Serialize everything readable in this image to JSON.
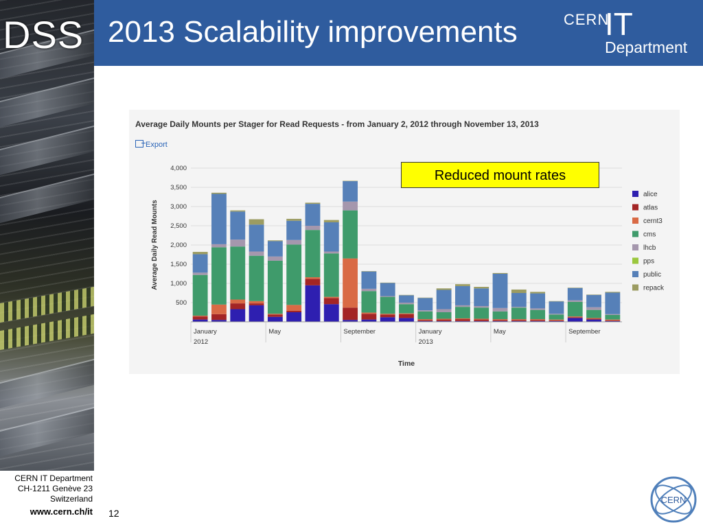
{
  "slide": {
    "side_label": "DSS",
    "title": "2013 Scalability improvements",
    "logo": {
      "cern": "CERN",
      "it": "IT",
      "department": "Department"
    },
    "footer": {
      "line1": "CERN IT Department",
      "line2": "CH-1211 Genève 23",
      "line3": "Switzerland",
      "url": "www.cern.ch/it",
      "page_number": "12"
    },
    "seal_text": "CERN"
  },
  "chart_panel": {
    "title": "Average Daily Mounts per Stager for Read Requests - from January 2, 2012 through November 13, 2013",
    "export_label": "Export"
  },
  "callout": {
    "text": "Reduced mount rates"
  },
  "colors": {
    "header": "#2f5c9e",
    "alice": "#2e1fb0",
    "atlas": "#a32525",
    "cernt3": "#d96a45",
    "cms": "#3f9b6b",
    "lhcb": "#a597ad",
    "pps": "#9bc73e",
    "public": "#5680b8",
    "repack": "#9c9c62",
    "callout_bg": "#ffff00"
  },
  "chart_data": {
    "type": "bar",
    "stacked": true,
    "xlabel": "Time",
    "ylabel": "Average Daily  Read Mounts",
    "ylim": [
      0,
      4000
    ],
    "yticks": [
      "500",
      "1,000",
      "1,500",
      "2,000",
      "2,500",
      "3,000",
      "3,500",
      "4,000"
    ],
    "ytick_values": [
      500,
      1000,
      1500,
      2000,
      2500,
      3000,
      3500,
      4000
    ],
    "x_labels": [
      {
        "line1": "January",
        "line2": "2012",
        "index": 0
      },
      {
        "line1": "May",
        "line2": "",
        "index": 4
      },
      {
        "line1": "September",
        "line2": "",
        "index": 8
      },
      {
        "line1": "January",
        "line2": "2013",
        "index": 12
      },
      {
        "line1": "May",
        "line2": "",
        "index": 16
      },
      {
        "line1": "September",
        "line2": "",
        "index": 20
      }
    ],
    "categories": [
      "2012-01",
      "2012-02",
      "2012-03",
      "2012-04",
      "2012-05",
      "2012-06",
      "2012-07",
      "2012-08",
      "2012-09",
      "2012-10",
      "2012-11",
      "2012-12",
      "2013-01",
      "2013-02",
      "2013-03",
      "2013-04",
      "2013-05",
      "2013-06",
      "2013-07",
      "2013-08",
      "2013-09",
      "2013-10",
      "2013-11"
    ],
    "series": [
      {
        "name": "alice",
        "values": [
          60,
          50,
          330,
          430,
          130,
          250,
          950,
          460,
          50,
          60,
          120,
          100,
          20,
          20,
          20,
          20,
          20,
          20,
          20,
          20,
          100,
          60,
          20
        ]
      },
      {
        "name": "atlas",
        "values": [
          80,
          150,
          150,
          50,
          60,
          40,
          170,
          160,
          320,
          150,
          70,
          100,
          30,
          40,
          50,
          40,
          30,
          30,
          30,
          20,
          20,
          20,
          20
        ]
      },
      {
        "name": "cernt3",
        "values": [
          20,
          250,
          100,
          60,
          20,
          150,
          40,
          30,
          1280,
          30,
          20,
          20,
          20,
          20,
          20,
          20,
          20,
          20,
          20,
          20,
          20,
          20,
          20
        ]
      },
      {
        "name": "cms",
        "values": [
          1060,
          1490,
          1380,
          1180,
          1380,
          1570,
          1230,
          1130,
          1250,
          560,
          440,
          240,
          200,
          170,
          300,
          290,
          200,
          300,
          240,
          130,
          380,
          210,
          120
        ]
      },
      {
        "name": "lhcb",
        "values": [
          60,
          80,
          180,
          110,
          110,
          120,
          110,
          50,
          230,
          60,
          20,
          40,
          30,
          80,
          40,
          40,
          90,
          20,
          40,
          20,
          40,
          70,
          20
        ]
      },
      {
        "name": "pps",
        "values": [
          0,
          0,
          0,
          0,
          0,
          0,
          0,
          0,
          0,
          0,
          0,
          0,
          0,
          0,
          0,
          0,
          0,
          0,
          0,
          0,
          0,
          0,
          0
        ]
      },
      {
        "name": "public",
        "values": [
          480,
          1310,
          730,
          700,
          400,
          500,
          570,
          760,
          530,
          450,
          340,
          190,
          320,
          500,
          500,
          460,
          890,
          360,
          390,
          320,
          320,
          320,
          560
        ]
      },
      {
        "name": "repack",
        "values": [
          60,
          30,
          30,
          140,
          20,
          50,
          30,
          60,
          10,
          10,
          10,
          10,
          10,
          40,
          50,
          40,
          20,
          90,
          40,
          10,
          10,
          10,
          20
        ]
      }
    ],
    "legend_position": "right",
    "grid": "horizontal"
  }
}
